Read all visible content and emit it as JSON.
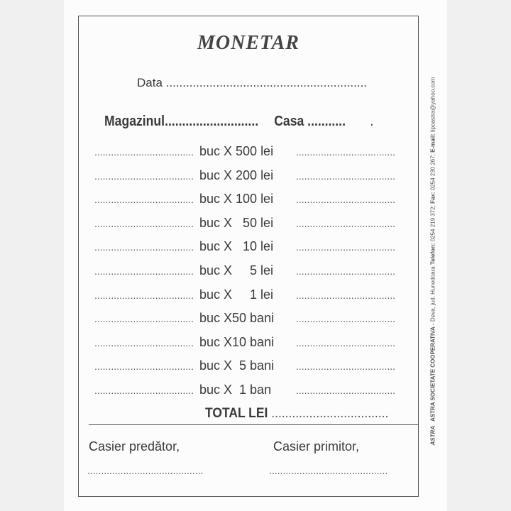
{
  "form": {
    "title": "MONETAR",
    "date_label": "Data ............................................................",
    "store_label": "Magazinul...........................",
    "register_label": "Casa ...........",
    "register_mark": ".",
    "rows": [
      {
        "left": "....................................",
        "unit": "buc X 500 lei",
        "right": "...................................."
      },
      {
        "left": "....................................",
        "unit": "buc X 200 lei",
        "right": "...................................."
      },
      {
        "left": "....................................",
        "unit": "buc X 100 lei",
        "right": "...................................."
      },
      {
        "left": "....................................",
        "unit": "buc X   50 lei",
        "right": "...................................."
      },
      {
        "left": "....................................",
        "unit": "buc X   10 lei",
        "right": "...................................."
      },
      {
        "left": "....................................",
        "unit": "buc X     5 lei",
        "right": "...................................."
      },
      {
        "left": "....................................",
        "unit": "buc X     1 lei",
        "right": "...................................."
      },
      {
        "left": "....................................",
        "unit": "buc X50 bani",
        "right": "...................................."
      },
      {
        "left": "....................................",
        "unit": "buc X10 bani",
        "right": "...................................."
      },
      {
        "left": "....................................",
        "unit": "buc X  5 bani",
        "right": "...................................."
      },
      {
        "left": "....................................",
        "unit": "buc X  1 ban",
        "right": "...................................."
      }
    ],
    "total_label": "TOTAL LEI",
    "total_dots": "..................................",
    "cashier_out": "Casier predător,",
    "cashier_in": "Casier primitor,",
    "sig_dots_left": "..........................................",
    "sig_dots_right": "..........................................."
  },
  "publisher": {
    "logo": "ASTRA",
    "name": "ASTRA SOCIETATE COOPERATIVA",
    "address": " - Deva, jud. Hunedoara ",
    "phone_label": "Telefon:",
    "phone": " 0254 219 372; ",
    "fax_label": "Fax:",
    "fax": " 0254 230 267; ",
    "email_label": "E-mail:",
    "email": " lipoastra@yahoo.com"
  }
}
